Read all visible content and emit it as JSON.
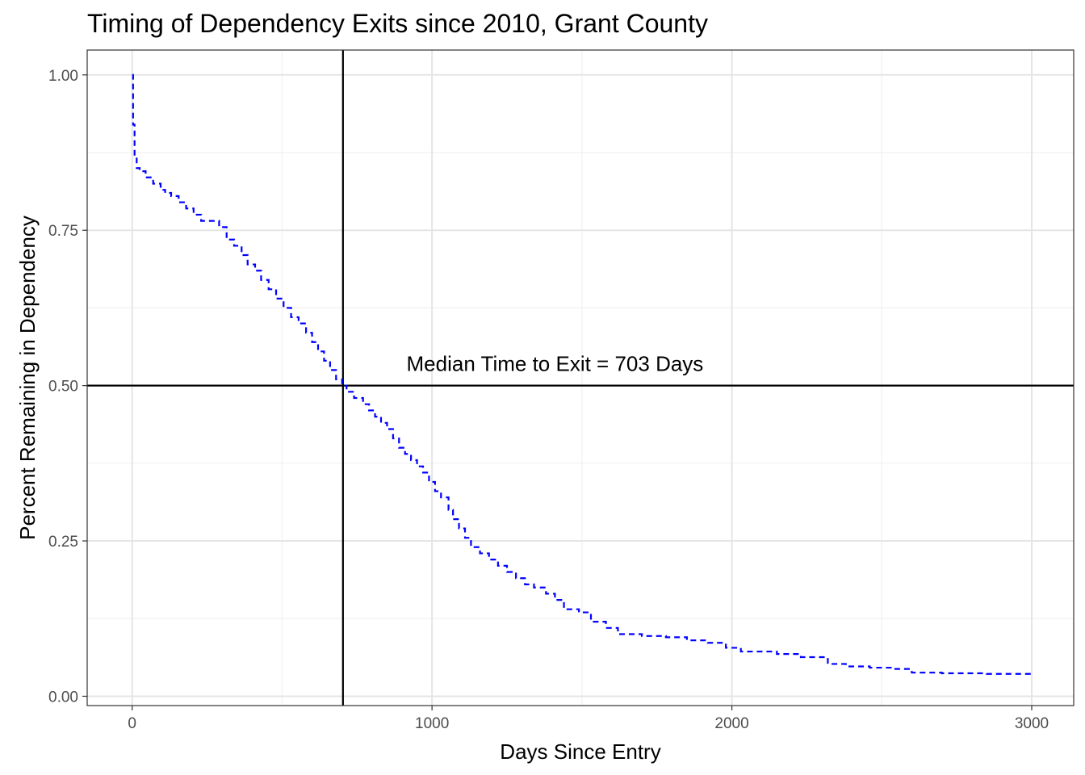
{
  "chart_data": {
    "type": "line",
    "title": "Timing of Dependency Exits since 2010, Grant County",
    "xlabel": "Days Since Entry",
    "ylabel": "Percent Remaining in Dependency",
    "xlim": [
      -150,
      3140
    ],
    "ylim": [
      -0.015,
      1.04
    ],
    "x_ticks": [
      0,
      1000,
      2000,
      3000
    ],
    "x_tick_labels": [
      "0",
      "1000",
      "2000",
      "3000"
    ],
    "y_ticks": [
      0.0,
      0.25,
      0.5,
      0.75,
      1.0
    ],
    "y_tick_labels": [
      "0.00",
      "0.25",
      "0.50",
      "0.75",
      "1.00"
    ],
    "grid": true,
    "series": [
      {
        "color": "#0000ff",
        "line_style": "dashed",
        "step": true,
        "x": [
          0,
          3,
          8,
          15,
          25,
          45,
          70,
          95,
          110,
          130,
          155,
          180,
          205,
          230,
          260,
          290,
          315,
          340,
          365,
          385,
          410,
          430,
          455,
          480,
          505,
          530,
          555,
          580,
          600,
          620,
          640,
          660,
          680,
          700,
          715,
          740,
          770,
          790,
          810,
          830,
          850,
          870,
          890,
          910,
          930,
          950,
          970,
          990,
          1010,
          1030,
          1055,
          1070,
          1090,
          1110,
          1130,
          1160,
          1190,
          1220,
          1250,
          1280,
          1310,
          1340,
          1380,
          1410,
          1440,
          1490,
          1530,
          1580,
          1620,
          1700,
          1780,
          1850,
          1920,
          1980,
          2030,
          2150,
          2230,
          2320,
          2380,
          2460,
          2530,
          2600,
          2700,
          2850,
          3000
        ],
        "y": [
          1.0,
          0.92,
          0.87,
          0.85,
          0.845,
          0.835,
          0.825,
          0.815,
          0.81,
          0.805,
          0.795,
          0.785,
          0.775,
          0.765,
          0.765,
          0.755,
          0.735,
          0.725,
          0.71,
          0.695,
          0.685,
          0.67,
          0.655,
          0.64,
          0.625,
          0.61,
          0.6,
          0.585,
          0.57,
          0.555,
          0.54,
          0.525,
          0.51,
          0.5,
          0.49,
          0.48,
          0.47,
          0.46,
          0.45,
          0.44,
          0.43,
          0.415,
          0.4,
          0.39,
          0.38,
          0.37,
          0.36,
          0.345,
          0.33,
          0.32,
          0.3,
          0.285,
          0.27,
          0.255,
          0.24,
          0.23,
          0.22,
          0.21,
          0.2,
          0.19,
          0.18,
          0.175,
          0.165,
          0.155,
          0.14,
          0.135,
          0.12,
          0.11,
          0.1,
          0.097,
          0.095,
          0.09,
          0.086,
          0.078,
          0.072,
          0.068,
          0.063,
          0.052,
          0.048,
          0.046,
          0.044,
          0.038,
          0.037,
          0.036,
          0.036
        ]
      }
    ],
    "reference_lines": {
      "vertical_x": 703,
      "horizontal_y": 0.5,
      "color": "#000000"
    },
    "annotation": {
      "text": "Median Time to Exit = 703 Days",
      "x": 1410,
      "y": 0.535
    }
  }
}
